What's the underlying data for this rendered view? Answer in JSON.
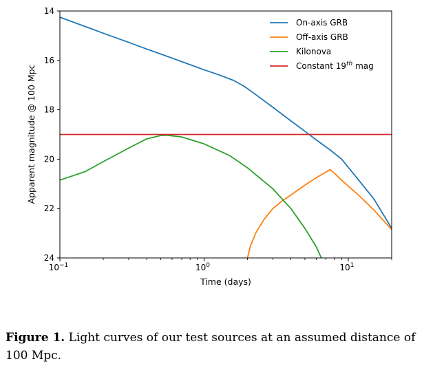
{
  "chart_data": {
    "type": "line",
    "xlabel": "Time (days)",
    "ylabel": "Apparent magnitude @ 100 Mpc",
    "x_scale": "log",
    "xlim": [
      0.1,
      20
    ],
    "ylim": [
      24,
      14
    ],
    "y_inverted": true,
    "x_ticks": [
      {
        "value": 0.1,
        "base": "10",
        "exp": "−1"
      },
      {
        "value": 1,
        "base": "10",
        "exp": "0"
      },
      {
        "value": 10,
        "base": "10",
        "exp": "1"
      }
    ],
    "y_ticks": [
      "14",
      "16",
      "18",
      "20",
      "22",
      "24"
    ],
    "legend_position": "top-right",
    "series": [
      {
        "name": "On-axis GRB",
        "color": "#1f77b4",
        "x": [
          0.1,
          0.15,
          0.2,
          0.3,
          0.4,
          0.5,
          0.7,
          1.0,
          1.3,
          1.6,
          1.9,
          2.3,
          3.0,
          4.0,
          5.0,
          6.0,
          7.5,
          9.0,
          12.0,
          15.0,
          20.0
        ],
        "y": [
          14.25,
          14.63,
          14.9,
          15.27,
          15.54,
          15.74,
          16.05,
          16.38,
          16.61,
          16.81,
          17.05,
          17.4,
          17.9,
          18.45,
          18.87,
          19.22,
          19.63,
          20.0,
          20.9,
          21.6,
          22.8
        ]
      },
      {
        "name": "Off-axis GRB",
        "color": "#ff7f0e",
        "x": [
          2.0,
          2.1,
          2.3,
          2.6,
          3.0,
          3.5,
          4.0,
          5.0,
          6.0,
          7.5,
          9.0,
          12.0,
          15.0,
          20.0
        ],
        "y": [
          24.0,
          23.5,
          22.95,
          22.45,
          22.0,
          21.68,
          21.45,
          21.05,
          20.75,
          20.42,
          20.85,
          21.5,
          22.05,
          22.85
        ]
      },
      {
        "name": "Kilonova",
        "color": "#2ca02c",
        "x": [
          0.1,
          0.15,
          0.2,
          0.3,
          0.4,
          0.5,
          0.55,
          0.7,
          1.0,
          1.5,
          2.0,
          3.0,
          4.0,
          5.0,
          6.0,
          6.5
        ],
        "y": [
          20.85,
          20.5,
          20.1,
          19.55,
          19.18,
          19.04,
          19.03,
          19.1,
          19.38,
          19.85,
          20.35,
          21.2,
          22.0,
          22.8,
          23.55,
          24.0
        ]
      },
      {
        "name": "Constant 19th mag",
        "color": "#d62728",
        "x": [
          0.1,
          20.0
        ],
        "y": [
          19.0,
          19.0
        ]
      }
    ],
    "legend": [
      {
        "label": "On-axis GRB",
        "color": "#1f77b4"
      },
      {
        "label": "Off-axis GRB",
        "color": "#ff7f0e"
      },
      {
        "label": "Kilonova",
        "color": "#2ca02c"
      },
      {
        "label_main": "Constant 19",
        "label_sup": "th",
        "label_end": " mag",
        "color": "#d62728"
      }
    ]
  },
  "caption": {
    "label": "Figure 1.",
    "text": " Light curves of our test sources at an assumed distance of 100 Mpc."
  }
}
